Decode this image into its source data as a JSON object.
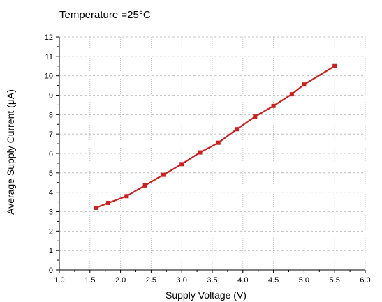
{
  "chart_data": {
    "type": "line",
    "title": "Temperature =25°C",
    "xlabel": "Supply Voltage (V)",
    "ylabel": "Average Supply Current (μA)",
    "xlim": [
      1.0,
      6.0
    ],
    "ylim": [
      0,
      12
    ],
    "x_ticks": [
      "1.0",
      "1.5",
      "2.0",
      "2.5",
      "3.0",
      "3.5",
      "4.0",
      "4.5",
      "5.0",
      "5.5",
      "6.0"
    ],
    "y_ticks": [
      "0",
      "1",
      "2",
      "3",
      "4",
      "5",
      "6",
      "7",
      "8",
      "9",
      "10",
      "11",
      "12"
    ],
    "grid": true,
    "series": [
      {
        "color": "#cc1f1f",
        "points": [
          {
            "x": 1.6,
            "y": 3.2
          },
          {
            "x": 1.8,
            "y": 3.45
          },
          {
            "x": 2.1,
            "y": 3.8
          },
          {
            "x": 2.4,
            "y": 4.35
          },
          {
            "x": 2.7,
            "y": 4.9
          },
          {
            "x": 3.0,
            "y": 5.45
          },
          {
            "x": 3.3,
            "y": 6.05
          },
          {
            "x": 3.6,
            "y": 6.55
          },
          {
            "x": 3.9,
            "y": 7.25
          },
          {
            "x": 4.2,
            "y": 7.9
          },
          {
            "x": 4.5,
            "y": 8.45
          },
          {
            "x": 4.8,
            "y": 9.05
          },
          {
            "x": 5.0,
            "y": 9.55
          },
          {
            "x": 5.5,
            "y": 10.5
          }
        ]
      }
    ]
  }
}
